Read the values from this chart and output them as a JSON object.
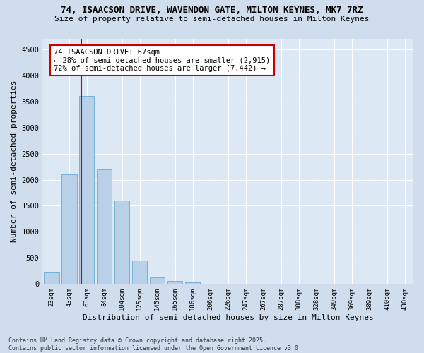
{
  "title_line1": "74, ISAACSON DRIVE, WAVENDON GATE, MILTON KEYNES, MK7 7RZ",
  "title_line2": "Size of property relative to semi-detached houses in Milton Keynes",
  "xlabel": "Distribution of semi-detached houses by size in Milton Keynes",
  "ylabel": "Number of semi-detached properties",
  "categories": [
    "23sqm",
    "43sqm",
    "63sqm",
    "84sqm",
    "104sqm",
    "125sqm",
    "145sqm",
    "165sqm",
    "186sqm",
    "206sqm",
    "226sqm",
    "247sqm",
    "267sqm",
    "287sqm",
    "308sqm",
    "328sqm",
    "349sqm",
    "369sqm",
    "389sqm",
    "410sqm",
    "430sqm"
  ],
  "values": [
    230,
    2100,
    3600,
    2200,
    1600,
    450,
    120,
    60,
    30,
    0,
    0,
    0,
    0,
    0,
    0,
    0,
    0,
    0,
    0,
    0,
    0
  ],
  "bar_color": "#b8d0e8",
  "bar_edge_color": "#6aaad4",
  "vline_color": "#cc0000",
  "annotation_title": "74 ISAACSON DRIVE: 67sqm",
  "annotation_line2": "← 28% of semi-detached houses are smaller (2,915)",
  "annotation_line3": "72% of semi-detached houses are larger (7,442) →",
  "annotation_box_facecolor": "#ffffff",
  "annotation_box_edgecolor": "#cc0000",
  "ylim": [
    0,
    4700
  ],
  "yticks": [
    0,
    500,
    1000,
    1500,
    2000,
    2500,
    3000,
    3500,
    4000,
    4500
  ],
  "background_color": "#cfdded",
  "plot_background": "#dce9f5",
  "grid_color": "#ffffff",
  "footer": "Contains HM Land Registry data © Crown copyright and database right 2025.\nContains public sector information licensed under the Open Government Licence v3.0."
}
